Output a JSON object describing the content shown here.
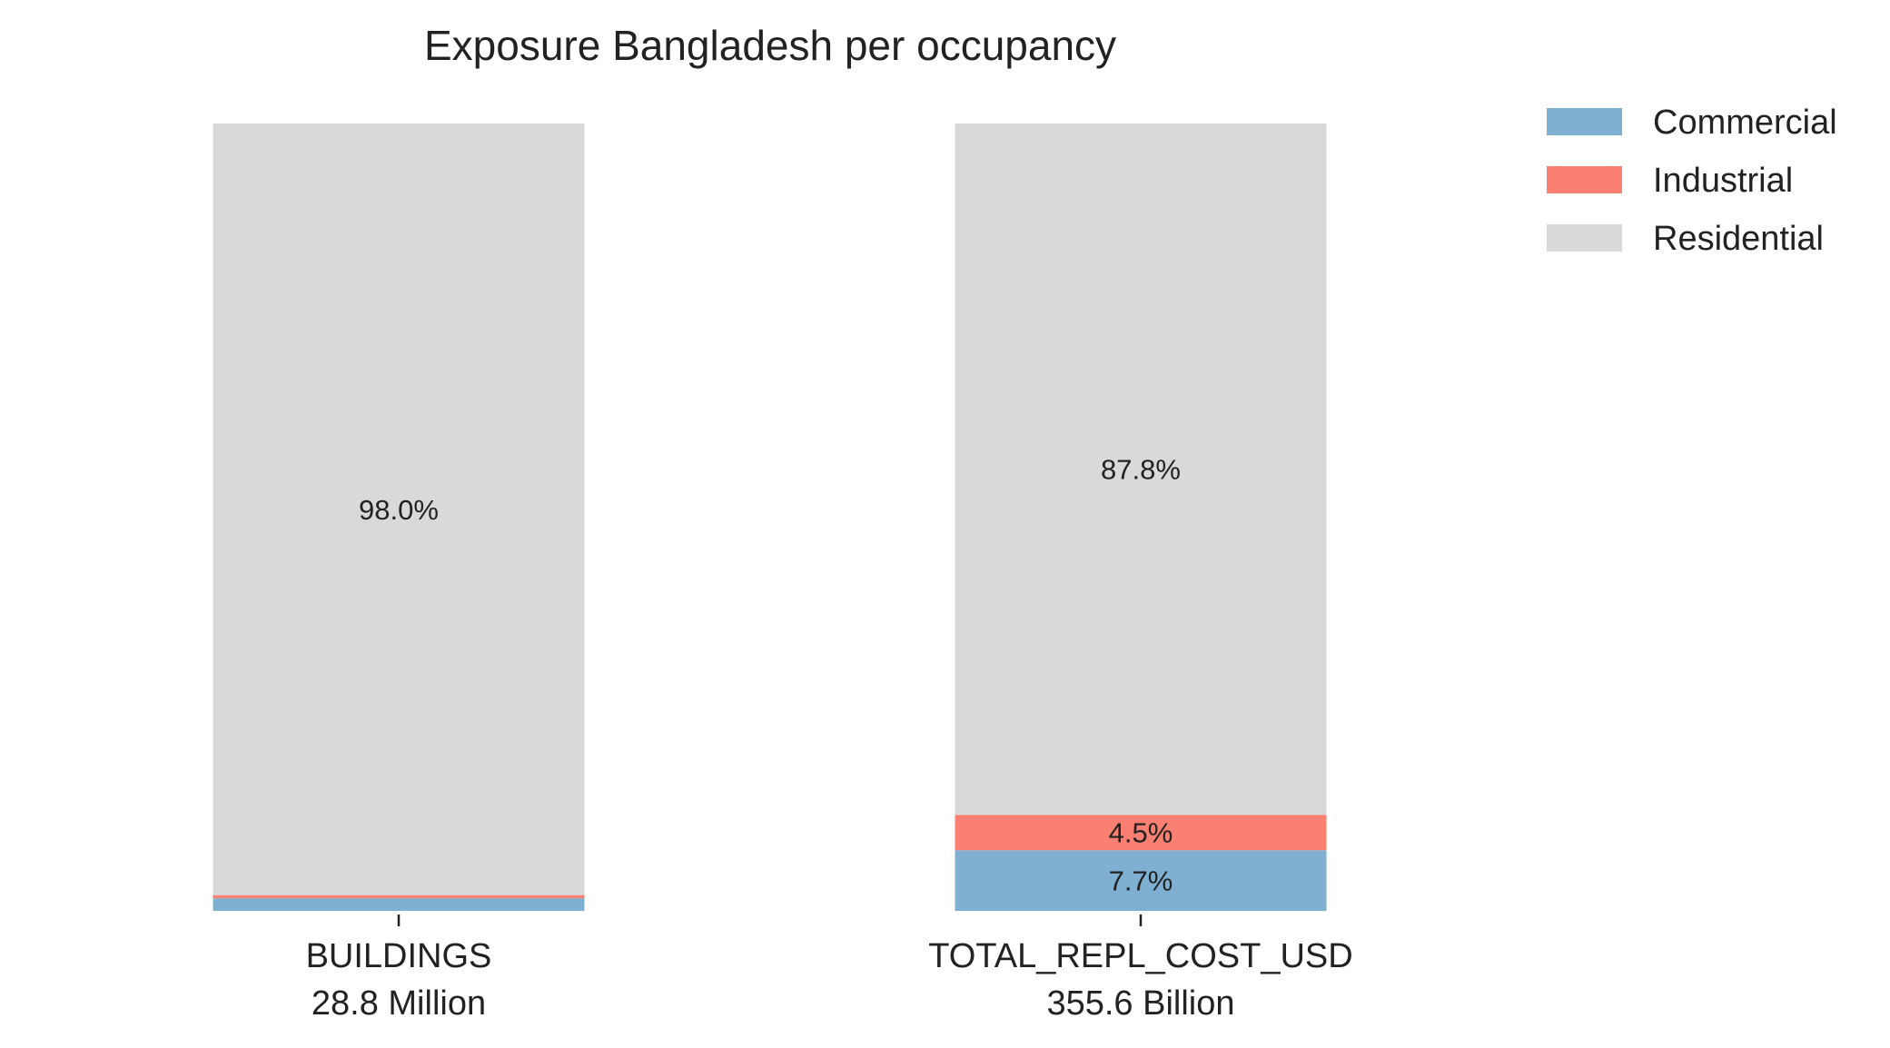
{
  "chart_data": {
    "type": "bar",
    "stacked": true,
    "normalized": true,
    "title": "Exposure Bangladesh per occupancy",
    "xlabel": "",
    "ylabel": "",
    "ylim": [
      0,
      100
    ],
    "grid": false,
    "legend_position": "top-right",
    "categories": [
      {
        "name": "BUILDINGS",
        "total": "28.8 Million"
      },
      {
        "name": "TOTAL_REPL_COST_USD",
        "total": "355.6 Billion"
      }
    ],
    "series": [
      {
        "name": "Commercial",
        "color": "#7fb0d2",
        "values": [
          1.6,
          7.7
        ],
        "labels": [
          "",
          "7.7%"
        ]
      },
      {
        "name": "Industrial",
        "color": "#fa8072",
        "values": [
          0.4,
          4.5
        ],
        "labels": [
          "",
          "4.5%"
        ]
      },
      {
        "name": "Residential",
        "color": "#d9d9d9",
        "values": [
          98.0,
          87.8
        ],
        "labels": [
          "98.0%",
          "87.8%"
        ]
      }
    ]
  }
}
